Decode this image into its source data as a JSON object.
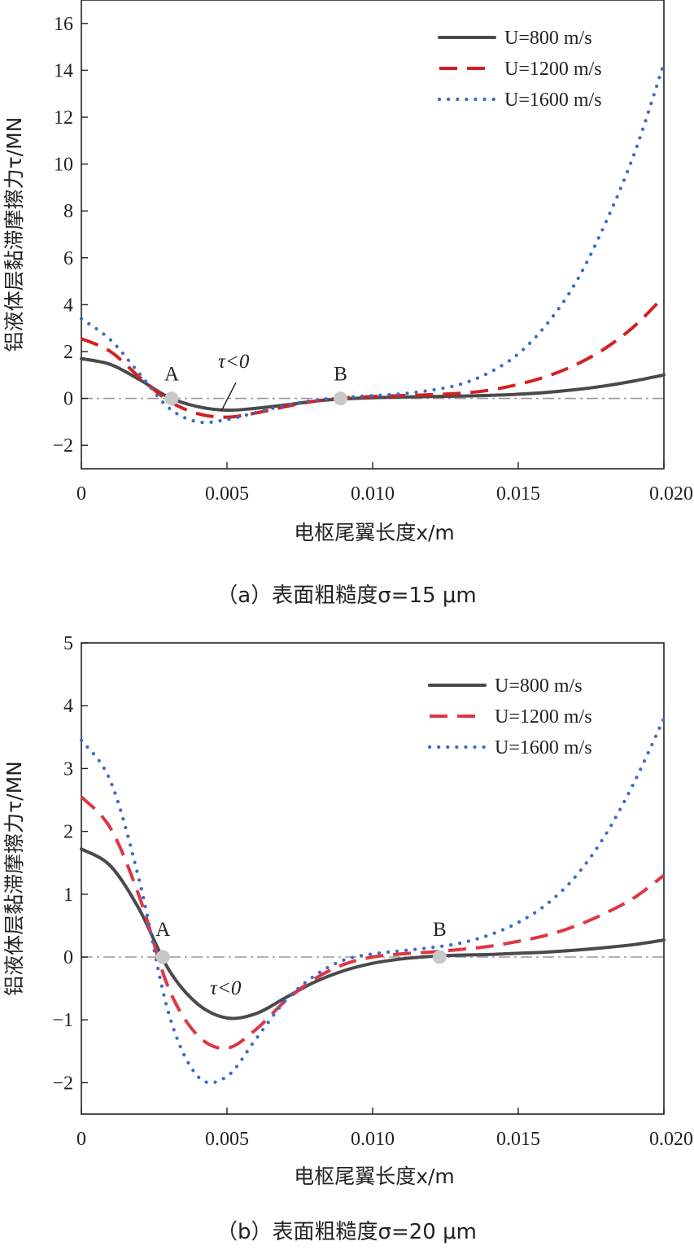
{
  "chart_data": [
    {
      "type": "line",
      "caption": "（a）表面粗糙度σ=15 μm",
      "xlabel": "电枢尾翼长度x/m",
      "ylabel": "铝液体层黏滞摩擦力τ/MN",
      "xlim": [
        0,
        0.02
      ],
      "ylim": [
        -3,
        17
      ],
      "xticks": [
        0,
        0.005,
        0.01,
        0.015,
        0.02
      ],
      "xtick_labels": [
        "0",
        "0.005",
        "0.010",
        "0.015",
        "0.020"
      ],
      "yticks": [
        -2,
        0,
        2,
        4,
        6,
        8,
        10,
        12,
        14,
        16
      ],
      "ytick_labels": [
        "−2",
        "0",
        "2",
        "4",
        "6",
        "8",
        "10",
        "12",
        "14",
        "16"
      ],
      "legend_position": "top-right",
      "series": [
        {
          "name": "U=800 m/s",
          "color": "#4a4a4a",
          "style": "solid",
          "x": [
            0,
            0.001,
            0.002,
            0.003,
            0.004,
            0.005,
            0.006,
            0.007,
            0.008,
            0.009,
            0.01,
            0.011,
            0.012,
            0.013,
            0.014,
            0.015,
            0.016,
            0.017,
            0.018,
            0.019,
            0.02
          ],
          "y": [
            1.7,
            1.45,
            0.8,
            0.05,
            -0.35,
            -0.5,
            -0.42,
            -0.28,
            -0.12,
            -0.02,
            0.03,
            0.06,
            0.08,
            0.1,
            0.13,
            0.18,
            0.26,
            0.38,
            0.54,
            0.75,
            1.0
          ]
        },
        {
          "name": "U=1200 m/s",
          "color": "#d42020",
          "style": "dashed",
          "x": [
            0,
            0.001,
            0.002,
            0.003,
            0.004,
            0.005,
            0.006,
            0.007,
            0.008,
            0.009,
            0.01,
            0.011,
            0.012,
            0.013,
            0.014,
            0.015,
            0.016,
            0.017,
            0.018,
            0.019,
            0.02
          ],
          "y": [
            2.55,
            2.0,
            0.9,
            -0.1,
            -0.65,
            -0.8,
            -0.62,
            -0.35,
            -0.12,
            0.02,
            0.08,
            0.12,
            0.16,
            0.22,
            0.35,
            0.6,
            0.95,
            1.45,
            2.15,
            3.1,
            4.35
          ]
        },
        {
          "name": "U=1600 m/s",
          "color": "#3a6cc4",
          "style": "dotted",
          "x": [
            0,
            0.001,
            0.002,
            0.003,
            0.004,
            0.005,
            0.006,
            0.007,
            0.008,
            0.009,
            0.01,
            0.011,
            0.012,
            0.013,
            0.014,
            0.015,
            0.016,
            0.017,
            0.018,
            0.019,
            0.02
          ],
          "y": [
            3.4,
            2.5,
            1.05,
            -0.4,
            -1.0,
            -0.9,
            -0.6,
            -0.3,
            -0.08,
            0.04,
            0.12,
            0.2,
            0.35,
            0.6,
            1.1,
            1.9,
            3.2,
            5.0,
            7.5,
            10.5,
            14.3
          ]
        }
      ],
      "points": [
        {
          "label": "A",
          "x": 0.0031,
          "y": 0
        },
        {
          "label": "B",
          "x": 0.0089,
          "y": 0
        }
      ],
      "annotation": {
        "text": "τ<0",
        "target_x": 0.005,
        "target_y": -0.5
      }
    },
    {
      "type": "line",
      "caption": "（b）表面粗糙度σ=20 μm",
      "xlabel": "电枢尾翼长度x/m",
      "ylabel": "铝液体层黏滞摩擦力τ/MN",
      "xlim": [
        0,
        0.02
      ],
      "ylim": [
        -2.5,
        5
      ],
      "xticks": [
        0,
        0.005,
        0.01,
        0.015,
        0.02
      ],
      "xtick_labels": [
        "0",
        "0.005",
        "0.010",
        "0.015",
        "0.020"
      ],
      "yticks": [
        -2,
        -1,
        0,
        1,
        2,
        3,
        4,
        5
      ],
      "ytick_labels": [
        "−2",
        "−1",
        "0",
        "1",
        "2",
        "3",
        "4",
        "5"
      ],
      "legend_position": "top-right",
      "series": [
        {
          "name": "U=800 m/s",
          "color": "#4a4a4a",
          "style": "solid",
          "x": [
            0,
            0.001,
            0.002,
            0.003,
            0.004,
            0.005,
            0.006,
            0.007,
            0.008,
            0.009,
            0.01,
            0.011,
            0.012,
            0.013,
            0.014,
            0.015,
            0.016,
            0.017,
            0.018,
            0.019,
            0.02
          ],
          "y": [
            1.72,
            1.45,
            0.75,
            -0.2,
            -0.75,
            -0.97,
            -0.9,
            -0.65,
            -0.4,
            -0.22,
            -0.1,
            -0.03,
            0.01,
            0.03,
            0.04,
            0.06,
            0.08,
            0.11,
            0.15,
            0.2,
            0.27
          ]
        },
        {
          "name": "U=1200 m/s",
          "color": "#e03545",
          "style": "dashed",
          "x": [
            0,
            0.001,
            0.002,
            0.003,
            0.004,
            0.005,
            0.006,
            0.007,
            0.008,
            0.009,
            0.01,
            0.011,
            0.012,
            0.013,
            0.014,
            0.015,
            0.016,
            0.017,
            0.018,
            0.019,
            0.02
          ],
          "y": [
            2.55,
            2.05,
            0.95,
            -0.5,
            -1.25,
            -1.45,
            -1.15,
            -0.7,
            -0.35,
            -0.12,
            0.0,
            0.05,
            0.08,
            0.12,
            0.17,
            0.25,
            0.35,
            0.5,
            0.7,
            0.95,
            1.3
          ]
        },
        {
          "name": "U=1600 m/s",
          "color": "#3a6cc4",
          "style": "dotted",
          "x": [
            0,
            0.001,
            0.002,
            0.003,
            0.004,
            0.005,
            0.006,
            0.007,
            0.008,
            0.009,
            0.01,
            0.011,
            0.012,
            0.013,
            0.014,
            0.015,
            0.016,
            0.017,
            0.018,
            0.019,
            0.02
          ],
          "y": [
            3.45,
            2.8,
            1.2,
            -0.9,
            -1.9,
            -1.9,
            -1.3,
            -0.7,
            -0.3,
            -0.05,
            0.05,
            0.1,
            0.15,
            0.22,
            0.35,
            0.55,
            0.85,
            1.3,
            1.95,
            2.8,
            3.8
          ]
        }
      ],
      "points": [
        {
          "label": "A",
          "x": 0.0028,
          "y": 0
        },
        {
          "label": "B",
          "x": 0.0123,
          "y": 0
        }
      ],
      "annotation": {
        "text": "τ<0",
        "target_x": 0.0062,
        "target_y": -0.35
      }
    }
  ]
}
